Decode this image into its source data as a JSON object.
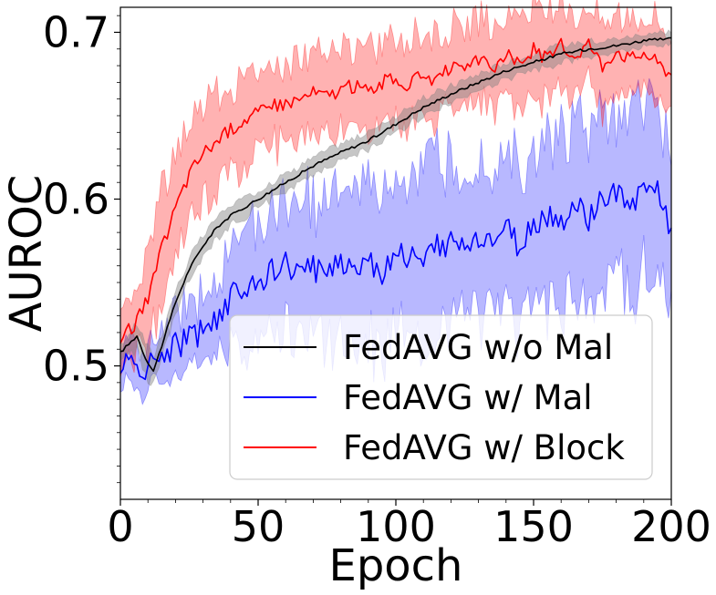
{
  "chart_data": {
    "type": "line",
    "title": "",
    "xlabel": "Epoch",
    "ylabel": "AUROC",
    "xlim": [
      0,
      200
    ],
    "ylim": [
      0.42,
      0.715
    ],
    "xticks": [
      0,
      50,
      100,
      150,
      200
    ],
    "xtick_labels": [
      "0",
      "50",
      "100",
      "150",
      "200"
    ],
    "yticks": [
      0.5,
      0.6,
      0.7
    ],
    "ytick_labels": [
      "0.5",
      "0.6",
      "0.7"
    ],
    "grid": false,
    "legend_position": "lower-right",
    "series": [
      {
        "name": "FedAVG w/o Mal",
        "color": "#000000",
        "band_color": "#808080",
        "x": [
          0,
          3,
          6,
          9,
          12,
          15,
          20,
          25,
          30,
          35,
          40,
          50,
          60,
          70,
          80,
          90,
          100,
          110,
          120,
          130,
          140,
          150,
          160,
          170,
          180,
          190,
          200
        ],
        "mean": [
          0.508,
          0.513,
          0.518,
          0.505,
          0.497,
          0.512,
          0.538,
          0.558,
          0.572,
          0.583,
          0.59,
          0.6,
          0.61,
          0.62,
          0.628,
          0.635,
          0.645,
          0.655,
          0.663,
          0.67,
          0.677,
          0.682,
          0.687,
          0.69,
          0.692,
          0.695,
          0.696
        ],
        "spread": [
          0.004,
          0.006,
          0.008,
          0.01,
          0.008,
          0.008,
          0.007,
          0.006,
          0.006,
          0.006,
          0.006,
          0.005,
          0.005,
          0.005,
          0.005,
          0.005,
          0.005,
          0.005,
          0.005,
          0.005,
          0.005,
          0.005,
          0.005,
          0.005,
          0.004,
          0.004,
          0.004
        ]
      },
      {
        "name": "FedAVG w/ Mal",
        "color": "#0000ff",
        "band_color": "#0000ff",
        "x": [
          0,
          5,
          10,
          15,
          20,
          25,
          30,
          35,
          40,
          45,
          50,
          55,
          60,
          65,
          70,
          75,
          80,
          85,
          90,
          95,
          100,
          105,
          110,
          115,
          120,
          125,
          130,
          135,
          140,
          145,
          150,
          155,
          160,
          165,
          170,
          175,
          180,
          185,
          190,
          195,
          200
        ],
        "mean": [
          0.502,
          0.5,
          0.498,
          0.508,
          0.512,
          0.516,
          0.522,
          0.53,
          0.54,
          0.548,
          0.552,
          0.556,
          0.56,
          0.555,
          0.558,
          0.56,
          0.562,
          0.56,
          0.565,
          0.555,
          0.57,
          0.566,
          0.56,
          0.572,
          0.575,
          0.57,
          0.578,
          0.574,
          0.582,
          0.57,
          0.585,
          0.59,
          0.586,
          0.595,
          0.588,
          0.6,
          0.602,
          0.596,
          0.608,
          0.604,
          0.58
        ],
        "spread": [
          0.012,
          0.012,
          0.012,
          0.014,
          0.018,
          0.02,
          0.022,
          0.025,
          0.03,
          0.033,
          0.035,
          0.036,
          0.038,
          0.04,
          0.042,
          0.043,
          0.044,
          0.045,
          0.046,
          0.047,
          0.048,
          0.048,
          0.049,
          0.05,
          0.05,
          0.05,
          0.05,
          0.05,
          0.05,
          0.05,
          0.05,
          0.05,
          0.05,
          0.05,
          0.05,
          0.05,
          0.05,
          0.05,
          0.05,
          0.05,
          0.05
        ]
      },
      {
        "name": "FedAVG w/ Block",
        "color": "#ff0000",
        "band_color": "#ff0000",
        "x": [
          0,
          5,
          10,
          15,
          20,
          25,
          30,
          35,
          40,
          45,
          50,
          55,
          60,
          65,
          70,
          75,
          80,
          85,
          90,
          95,
          100,
          105,
          110,
          115,
          120,
          125,
          130,
          135,
          140,
          145,
          150,
          155,
          160,
          165,
          170,
          175,
          180,
          185,
          190,
          195,
          200
        ],
        "mean": [
          0.515,
          0.525,
          0.54,
          0.57,
          0.595,
          0.615,
          0.628,
          0.635,
          0.642,
          0.648,
          0.652,
          0.655,
          0.658,
          0.66,
          0.664,
          0.662,
          0.666,
          0.668,
          0.665,
          0.67,
          0.672,
          0.668,
          0.676,
          0.67,
          0.68,
          0.675,
          0.684,
          0.678,
          0.686,
          0.682,
          0.69,
          0.684,
          0.692,
          0.686,
          0.694,
          0.68,
          0.69,
          0.684,
          0.688,
          0.682,
          0.675
        ],
        "spread": [
          0.015,
          0.018,
          0.03,
          0.035,
          0.035,
          0.032,
          0.03,
          0.028,
          0.027,
          0.026,
          0.025,
          0.024,
          0.024,
          0.024,
          0.024,
          0.024,
          0.024,
          0.024,
          0.025,
          0.025,
          0.025,
          0.025,
          0.025,
          0.025,
          0.025,
          0.025,
          0.025,
          0.025,
          0.025,
          0.025,
          0.025,
          0.025,
          0.025,
          0.025,
          0.025,
          0.025,
          0.025,
          0.025,
          0.025,
          0.025,
          0.025
        ]
      }
    ]
  }
}
